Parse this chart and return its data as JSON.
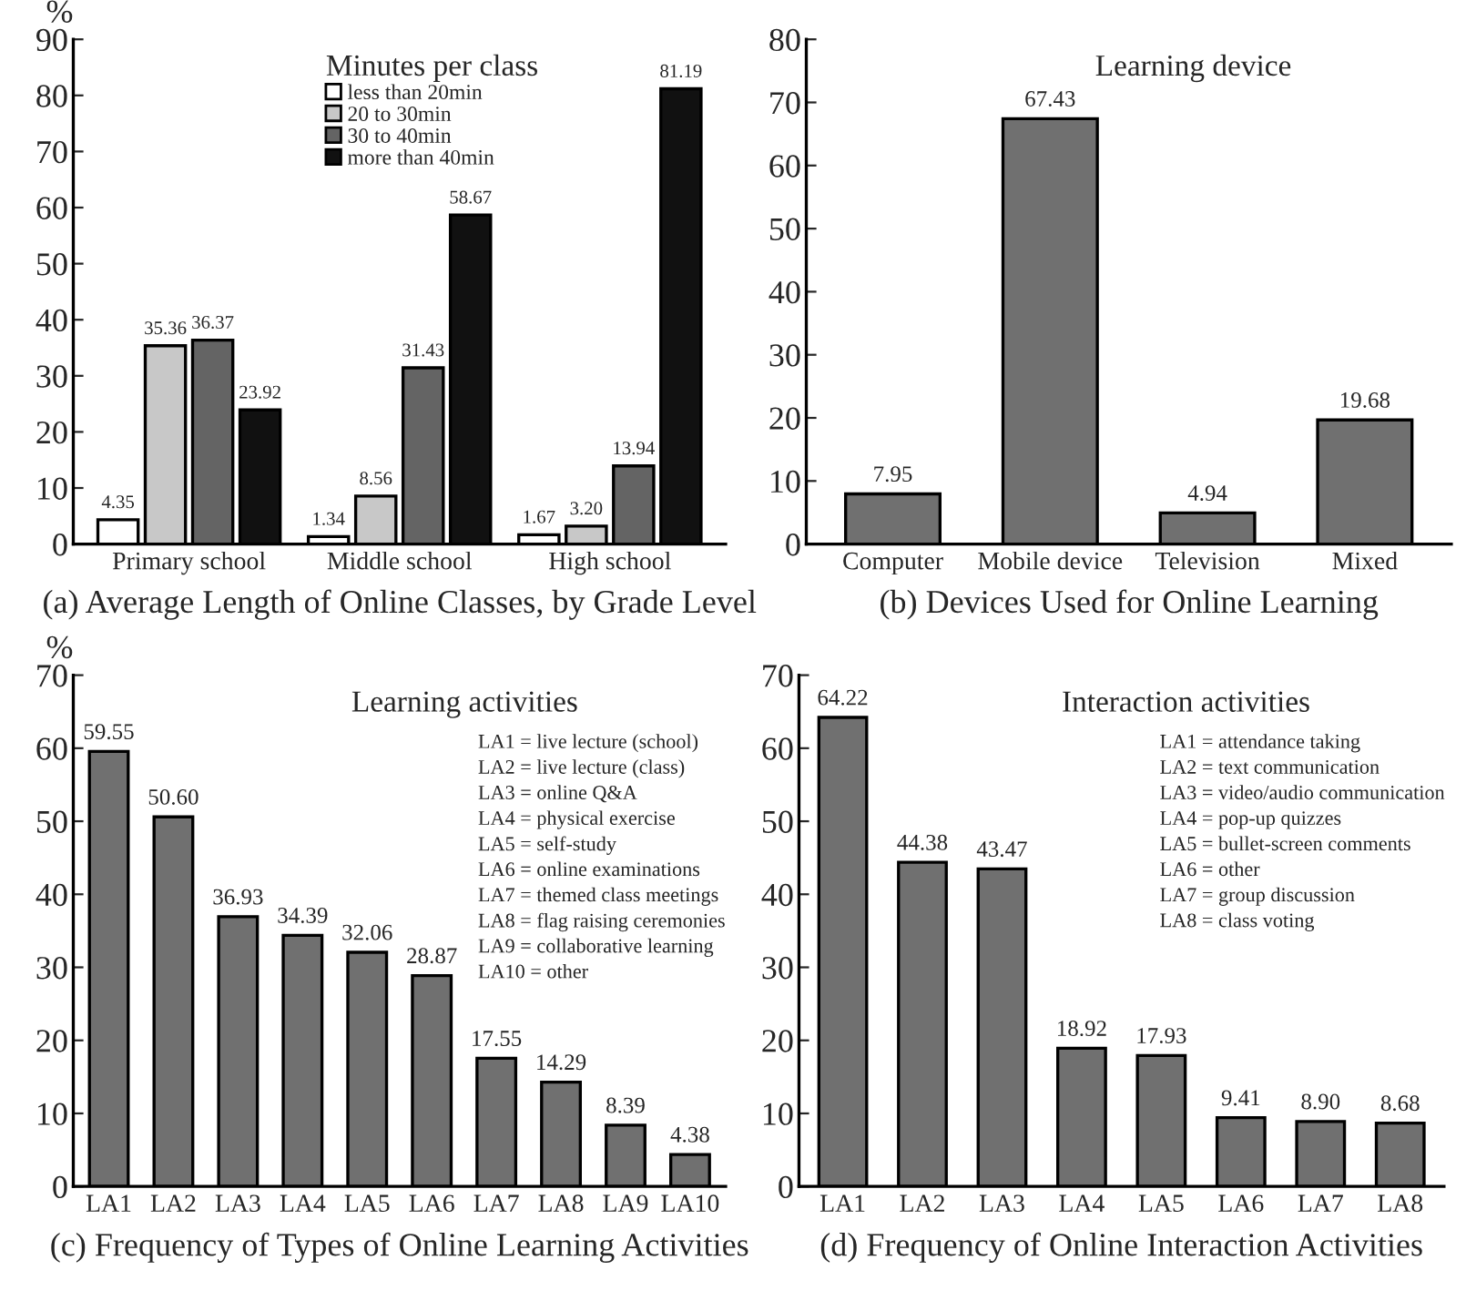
{
  "chart_data": [
    {
      "type": "bar",
      "title": "(a) Average Length of Online Classes, by Grade Level",
      "ylabel": "%",
      "legend_title": "Minutes per class",
      "categories": [
        "Primary school",
        "Middle school",
        "High school"
      ],
      "ylim": [
        0,
        90
      ],
      "yticks": [
        0,
        10,
        20,
        30,
        40,
        50,
        60,
        70,
        80,
        90
      ],
      "grid": false,
      "legend": "top",
      "series": [
        {
          "name": "less than 20min",
          "color": "#ffffff",
          "values": [
            4.35,
            1.34,
            1.67
          ],
          "value_labels": [
            "4.35",
            "1.34",
            "1.67"
          ]
        },
        {
          "name": "20 to 30min",
          "color": "#c8c8c8",
          "values": [
            35.36,
            8.56,
            3.2
          ],
          "value_labels": [
            "35.36",
            "8.56",
            "3.20"
          ]
        },
        {
          "name": "30 to 40min",
          "color": "#646464",
          "values": [
            36.37,
            31.43,
            13.94
          ],
          "value_labels": [
            "36.37",
            "31.43",
            "13.94"
          ]
        },
        {
          "name": "more than 40min",
          "color": "#111111",
          "values": [
            23.92,
            58.67,
            81.19
          ],
          "value_labels": [
            "23.92",
            "58.67",
            "81.19"
          ]
        }
      ]
    },
    {
      "type": "bar",
      "title": "(b) Devices Used for Online Learning",
      "subtitle": "Learning device",
      "categories": [
        "Computer",
        "Mobile device",
        "Television",
        "Mixed"
      ],
      "ylim": [
        0,
        80
      ],
      "yticks": [
        0,
        10,
        20,
        30,
        40,
        50,
        60,
        70,
        80
      ],
      "grid": false,
      "legend": false,
      "series": [
        {
          "color": "#707070",
          "values": [
            7.95,
            67.43,
            4.94,
            19.68
          ],
          "value_labels": [
            "7.95",
            "67.43",
            "4.94",
            "19.68"
          ]
        }
      ]
    },
    {
      "type": "bar",
      "title": "(c) Frequency of Types of Online Learning Activities",
      "subtitle": "Learning activities",
      "ylabel": "%",
      "categories": [
        "LA1",
        "LA2",
        "LA3",
        "LA4",
        "LA5",
        "LA6",
        "LA7",
        "LA8",
        "LA9",
        "LA10"
      ],
      "ylim": [
        0,
        70
      ],
      "yticks": [
        0,
        10,
        20,
        30,
        40,
        50,
        60,
        70
      ],
      "grid": false,
      "legend": false,
      "annotations": [
        "LA1 = live lecture (school)",
        "LA2 = live lecture (class)",
        "LA3 = online Q&A",
        "LA4 = physical exercise",
        "LA5 = self-study",
        "LA6 = online examinations",
        "LA7 = themed class meetings",
        "LA8 = flag raising ceremonies",
        "LA9 = collaborative learning",
        "LA10 = other"
      ],
      "series": [
        {
          "color": "#707070",
          "values": [
            59.55,
            50.6,
            36.93,
            34.39,
            32.06,
            28.87,
            17.55,
            14.29,
            8.39,
            4.38
          ],
          "value_labels": [
            "59.55",
            "50.60",
            "36.93",
            "34.39",
            "32.06",
            "28.87",
            "17.55",
            "14.29",
            "8.39",
            "4.38"
          ]
        }
      ]
    },
    {
      "type": "bar",
      "title": "(d) Frequency of Online Interaction Activities",
      "subtitle": "Interaction activities",
      "categories": [
        "LA1",
        "LA2",
        "LA3",
        "LA4",
        "LA5",
        "LA6",
        "LA7",
        "LA8"
      ],
      "ylim": [
        0,
        70
      ],
      "yticks": [
        0,
        10,
        20,
        30,
        40,
        50,
        60,
        70
      ],
      "grid": false,
      "legend": false,
      "annotations": [
        "LA1 = attendance taking",
        "LA2 = text communication",
        "LA3 = video/audio communication",
        "LA4 = pop-up quizzes",
        "LA5 = bullet-screen comments",
        "LA6 = other",
        "LA7 = group discussion",
        "LA8 = class voting"
      ],
      "series": [
        {
          "color": "#707070",
          "values": [
            64.22,
            44.38,
            43.47,
            18.92,
            17.93,
            9.41,
            8.9,
            8.68
          ],
          "value_labels": [
            "64.22",
            "44.38",
            "43.47",
            "18.92",
            "17.93",
            "9.41",
            "8.90",
            "8.68"
          ]
        }
      ]
    }
  ]
}
